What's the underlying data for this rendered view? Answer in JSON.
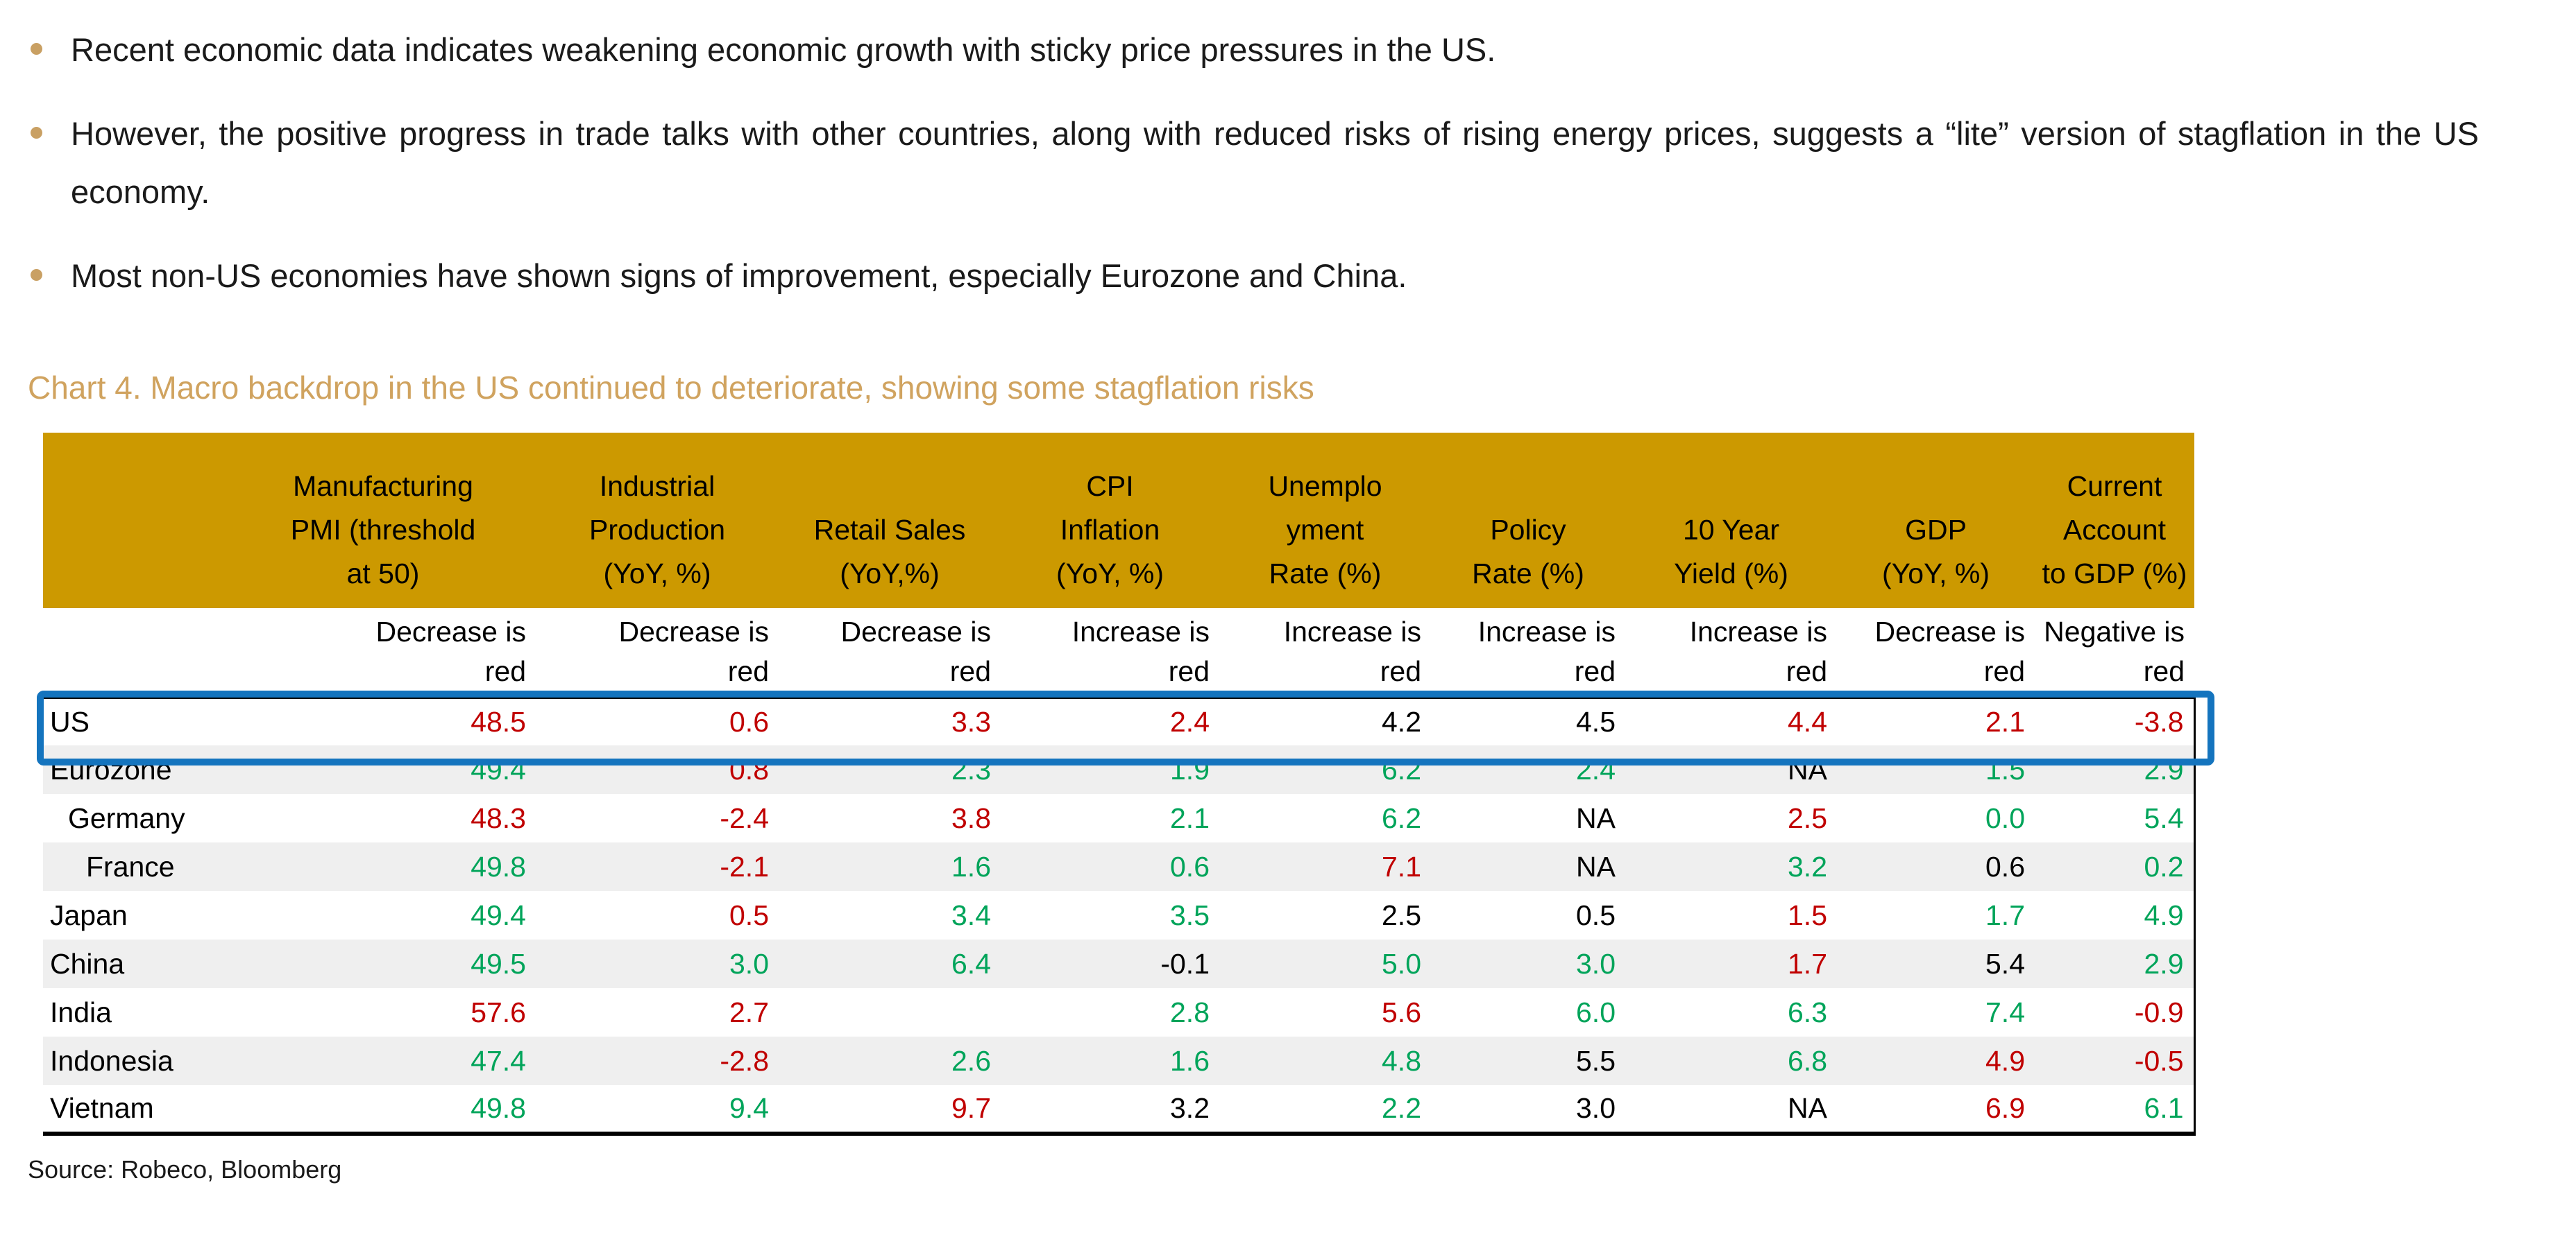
{
  "bullets": [
    {
      "text": "Recent economic data indicates weakening economic growth with sticky price pressures in the US."
    },
    {
      "text": "However, the positive progress in trade talks with other countries, along with reduced risks of rising energy prices, suggests a “lite” version of stagflation in the US economy."
    },
    {
      "text": "Most non-US economies have shown signs of improvement, especially Eurozone and China."
    }
  ],
  "chart_title": "Chart 4. Macro backdrop in the US continued to deteriorate, showing some stagflation risks",
  "source": "Source: Robeco, Bloomberg",
  "colors": {
    "header_gold": "#cc9900",
    "title_tan": "#d0a35f",
    "bullet_tan": "#c9a063",
    "negative_red": "#c00000",
    "positive_green": "#00a45a",
    "highlight_blue": "#1474be",
    "row_stripe": "#efefef"
  },
  "chart_data": {
    "type": "table",
    "title": "Chart 4. Macro backdrop in the US continued to deteriorate, showing some stagflation risks",
    "columns": [
      {
        "label": "Manufacturing\nPMI (threshold\nat 50)",
        "legend": "Decrease is\nred"
      },
      {
        "label": "Industrial\nProduction\n(YoY, %)",
        "legend": "Decrease is\nred"
      },
      {
        "label": "Retail Sales\n(YoY,%)",
        "legend": "Decrease is\nred"
      },
      {
        "label": "CPI\nInflation\n(YoY, %)",
        "legend": "Increase is\nred"
      },
      {
        "label": "Unemplo\nyment\nRate (%)",
        "legend": "Increase is\nred"
      },
      {
        "label": "Policy\nRate (%)",
        "legend": "Increase is\nred"
      },
      {
        "label": "10 Year\nYield (%)",
        "legend": "Increase is\nred"
      },
      {
        "label": "GDP\n(YoY, %)",
        "legend": "Decrease is\nred"
      },
      {
        "label": "Current\nAccount\nto GDP (%)",
        "legend": "Negative is\nred"
      }
    ],
    "rows": [
      {
        "country": "US",
        "highlighted": true,
        "stripe": false,
        "indent": 0,
        "values": [
          {
            "v": "48.5",
            "c": "red"
          },
          {
            "v": "0.6",
            "c": "red"
          },
          {
            "v": "3.3",
            "c": "red"
          },
          {
            "v": "2.4",
            "c": "red"
          },
          {
            "v": "4.2",
            "c": "black"
          },
          {
            "v": "4.5",
            "c": "black"
          },
          {
            "v": "4.4",
            "c": "red"
          },
          {
            "v": "2.1",
            "c": "red"
          },
          {
            "v": "-3.8",
            "c": "red"
          }
        ]
      },
      {
        "country": "Eurozone",
        "highlighted": false,
        "stripe": true,
        "indent": 0,
        "values": [
          {
            "v": "49.4",
            "c": "green"
          },
          {
            "v": "0.8",
            "c": "red"
          },
          {
            "v": "2.3",
            "c": "green"
          },
          {
            "v": "1.9",
            "c": "green"
          },
          {
            "v": "6.2",
            "c": "green"
          },
          {
            "v": "2.4",
            "c": "green"
          },
          {
            "v": "NA",
            "c": "black"
          },
          {
            "v": "1.5",
            "c": "green"
          },
          {
            "v": "2.9",
            "c": "green"
          }
        ]
      },
      {
        "country": "Germany",
        "highlighted": false,
        "stripe": false,
        "indent": 1,
        "values": [
          {
            "v": "48.3",
            "c": "red"
          },
          {
            "v": "-2.4",
            "c": "red"
          },
          {
            "v": "3.8",
            "c": "red"
          },
          {
            "v": "2.1",
            "c": "green"
          },
          {
            "v": "6.2",
            "c": "green"
          },
          {
            "v": "NA",
            "c": "black"
          },
          {
            "v": "2.5",
            "c": "red"
          },
          {
            "v": "0.0",
            "c": "green"
          },
          {
            "v": "5.4",
            "c": "green"
          }
        ]
      },
      {
        "country": "France",
        "highlighted": false,
        "stripe": true,
        "indent": 2,
        "values": [
          {
            "v": "49.8",
            "c": "green"
          },
          {
            "v": "-2.1",
            "c": "red"
          },
          {
            "v": "1.6",
            "c": "green"
          },
          {
            "v": "0.6",
            "c": "green"
          },
          {
            "v": "7.1",
            "c": "red"
          },
          {
            "v": "NA",
            "c": "black"
          },
          {
            "v": "3.2",
            "c": "green"
          },
          {
            "v": "0.6",
            "c": "black"
          },
          {
            "v": "0.2",
            "c": "green"
          }
        ]
      },
      {
        "country": "Japan",
        "highlighted": false,
        "stripe": false,
        "indent": 0,
        "values": [
          {
            "v": "49.4",
            "c": "green"
          },
          {
            "v": "0.5",
            "c": "red"
          },
          {
            "v": "3.4",
            "c": "green"
          },
          {
            "v": "3.5",
            "c": "green"
          },
          {
            "v": "2.5",
            "c": "black"
          },
          {
            "v": "0.5",
            "c": "black"
          },
          {
            "v": "1.5",
            "c": "red"
          },
          {
            "v": "1.7",
            "c": "green"
          },
          {
            "v": "4.9",
            "c": "green"
          }
        ]
      },
      {
        "country": "China",
        "highlighted": false,
        "stripe": true,
        "indent": 0,
        "values": [
          {
            "v": "49.5",
            "c": "green"
          },
          {
            "v": "3.0",
            "c": "green"
          },
          {
            "v": "6.4",
            "c": "green"
          },
          {
            "v": "-0.1",
            "c": "black"
          },
          {
            "v": "5.0",
            "c": "green"
          },
          {
            "v": "3.0",
            "c": "green"
          },
          {
            "v": "1.7",
            "c": "red"
          },
          {
            "v": "5.4",
            "c": "black"
          },
          {
            "v": "2.9",
            "c": "green"
          }
        ]
      },
      {
        "country": "India",
        "highlighted": false,
        "stripe": false,
        "indent": 0,
        "values": [
          {
            "v": "57.6",
            "c": "red"
          },
          {
            "v": "2.7",
            "c": "red"
          },
          {
            "v": "",
            "c": "black"
          },
          {
            "v": "2.8",
            "c": "green"
          },
          {
            "v": "5.6",
            "c": "red"
          },
          {
            "v": "6.0",
            "c": "green"
          },
          {
            "v": "6.3",
            "c": "green"
          },
          {
            "v": "7.4",
            "c": "green"
          },
          {
            "v": "-0.9",
            "c": "red"
          }
        ]
      },
      {
        "country": "Indonesia",
        "highlighted": false,
        "stripe": true,
        "indent": 0,
        "values": [
          {
            "v": "47.4",
            "c": "green"
          },
          {
            "v": "-2.8",
            "c": "red"
          },
          {
            "v": "2.6",
            "c": "green"
          },
          {
            "v": "1.6",
            "c": "green"
          },
          {
            "v": "4.8",
            "c": "green"
          },
          {
            "v": "5.5",
            "c": "black"
          },
          {
            "v": "6.8",
            "c": "green"
          },
          {
            "v": "4.9",
            "c": "red"
          },
          {
            "v": "-0.5",
            "c": "red"
          }
        ]
      },
      {
        "country": "Vietnam",
        "highlighted": false,
        "stripe": false,
        "indent": 0,
        "values": [
          {
            "v": "49.8",
            "c": "green"
          },
          {
            "v": "9.4",
            "c": "green"
          },
          {
            "v": "9.7",
            "c": "red"
          },
          {
            "v": "3.2",
            "c": "black"
          },
          {
            "v": "2.2",
            "c": "green"
          },
          {
            "v": "3.0",
            "c": "black"
          },
          {
            "v": "NA",
            "c": "black"
          },
          {
            "v": "6.9",
            "c": "red"
          },
          {
            "v": "6.1",
            "c": "green"
          }
        ]
      }
    ]
  }
}
